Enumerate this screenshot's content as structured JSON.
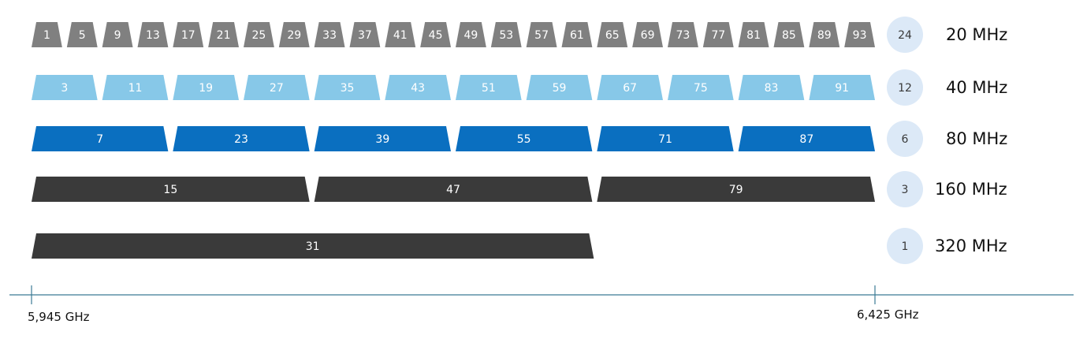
{
  "colors": {
    "bw20": "#808080",
    "bw40": "#87c8e8",
    "bw80": "#0a6fc0",
    "bw160": "#3a3a3a",
    "bw320": "#3a3a3a",
    "count_circle": "#dce9f7",
    "axis": "#3b7b95"
  },
  "rows": [
    {
      "id": "20",
      "bandwidth_label": "20 MHz",
      "count": "24",
      "channels": [
        "1",
        "5",
        "9",
        "13",
        "17",
        "21",
        "25",
        "29",
        "33",
        "37",
        "41",
        "45",
        "49",
        "53",
        "57",
        "61",
        "65",
        "69",
        "73",
        "77",
        "81",
        "85",
        "89",
        "93"
      ],
      "color_key": "bw20"
    },
    {
      "id": "40",
      "bandwidth_label": "40 MHz",
      "count": "12",
      "channels": [
        "3",
        "11",
        "19",
        "27",
        "35",
        "43",
        "51",
        "59",
        "67",
        "75",
        "83",
        "91"
      ],
      "color_key": "bw40"
    },
    {
      "id": "80",
      "bandwidth_label": "80 MHz",
      "count": "6",
      "channels": [
        "7",
        "23",
        "39",
        "55",
        "71",
        "87"
      ],
      "color_key": "bw80"
    },
    {
      "id": "160",
      "bandwidth_label": "160 MHz",
      "count": "3",
      "channels": [
        "15",
        "47",
        "79"
      ],
      "color_key": "bw160"
    },
    {
      "id": "320",
      "bandwidth_label": "320 MHz",
      "count": "1",
      "channels": [
        "31"
      ],
      "color_key": "bw320"
    }
  ],
  "axis": {
    "start_label": "5,945 GHz",
    "end_label": "6,425 GHz"
  }
}
